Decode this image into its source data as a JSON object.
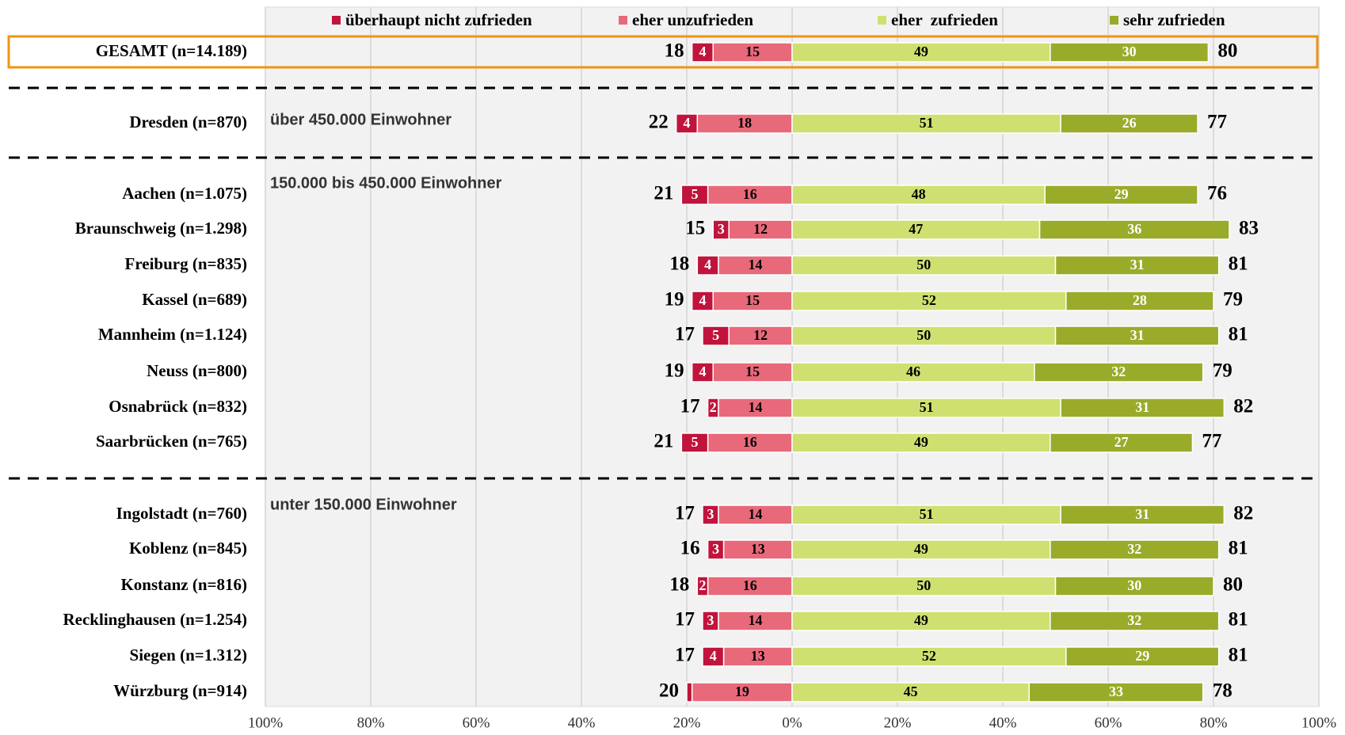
{
  "chart_data": {
    "type": "diverging_bar",
    "categories": [
      "GESAMT (n=14.189)",
      "Dresden (n=870)",
      "Aachen (n=1.075)",
      "Braunschweig (n=1.298)",
      "Freiburg (n=835)",
      "Kassel (n=689)",
      "Mannheim (n=1.124)",
      "Neuss (n=800)",
      "Osnabrück (n=832)",
      "Saarbrücken (n=765)",
      "Ingolstadt (n=760)",
      "Koblenz (n=845)",
      "Konstanz (n=816)",
      "Recklinghausen (n=1.254)",
      "Siegen (n=1.312)",
      "Würzburg (n=914)"
    ],
    "series": [
      {
        "name": "überhaupt nicht zufrieden",
        "color": "#c0143c",
        "label_color": "#ffffff",
        "values": [
          4,
          4,
          5,
          3,
          4,
          4,
          5,
          4,
          2,
          5,
          3,
          3,
          2,
          3,
          4,
          1
        ],
        "value_labels": [
          "4",
          "4",
          "5",
          "3",
          "4",
          "4",
          "5",
          "4",
          "2",
          "5",
          "3",
          "3",
          "2",
          "3",
          "4",
          null
        ]
      },
      {
        "name": "eher unzufrieden",
        "color": "#e8697a",
        "label_color": "#000000",
        "values": [
          15,
          18,
          16,
          12,
          14,
          15,
          12,
          15,
          14,
          16,
          14,
          13,
          16,
          14,
          13,
          19
        ]
      },
      {
        "name": "eher  zufrieden",
        "color": "#cfe070",
        "label_color": "#000000",
        "values": [
          49,
          51,
          48,
          47,
          50,
          52,
          50,
          46,
          51,
          49,
          51,
          49,
          50,
          49,
          52,
          45
        ]
      },
      {
        "name": "sehr zufrieden",
        "color": "#9aab2a",
        "label_color": "#ffffff",
        "values": [
          30,
          26,
          29,
          36,
          31,
          28,
          31,
          32,
          31,
          27,
          31,
          32,
          30,
          32,
          29,
          33
        ]
      }
    ],
    "neg_totals": [
      18,
      22,
      21,
      15,
      18,
      19,
      17,
      19,
      17,
      21,
      17,
      16,
      18,
      17,
      17,
      20
    ],
    "pos_totals": [
      80,
      77,
      76,
      83,
      81,
      79,
      81,
      79,
      82,
      77,
      82,
      81,
      80,
      81,
      81,
      78
    ],
    "annotations": [
      "über 450.000 Einwohner",
      "150.000 bis 450.000 Einwohner",
      "unter 150.000 Einwohner"
    ],
    "xlim": [
      -100,
      100
    ],
    "xticks": [
      {
        "value": -100,
        "label": "100%"
      },
      {
        "value": -80,
        "label": "80%"
      },
      {
        "value": -60,
        "label": "60%"
      },
      {
        "value": -40,
        "label": "40%"
      },
      {
        "value": -20,
        "label": "20%"
      },
      {
        "value": 0,
        "label": "0%"
      },
      {
        "value": 20,
        "label": "20%"
      },
      {
        "value": 40,
        "label": "40%"
      },
      {
        "value": 60,
        "label": "60%"
      },
      {
        "value": 80,
        "label": "80%"
      },
      {
        "value": 100,
        "label": "100%"
      }
    ],
    "grid": true
  }
}
